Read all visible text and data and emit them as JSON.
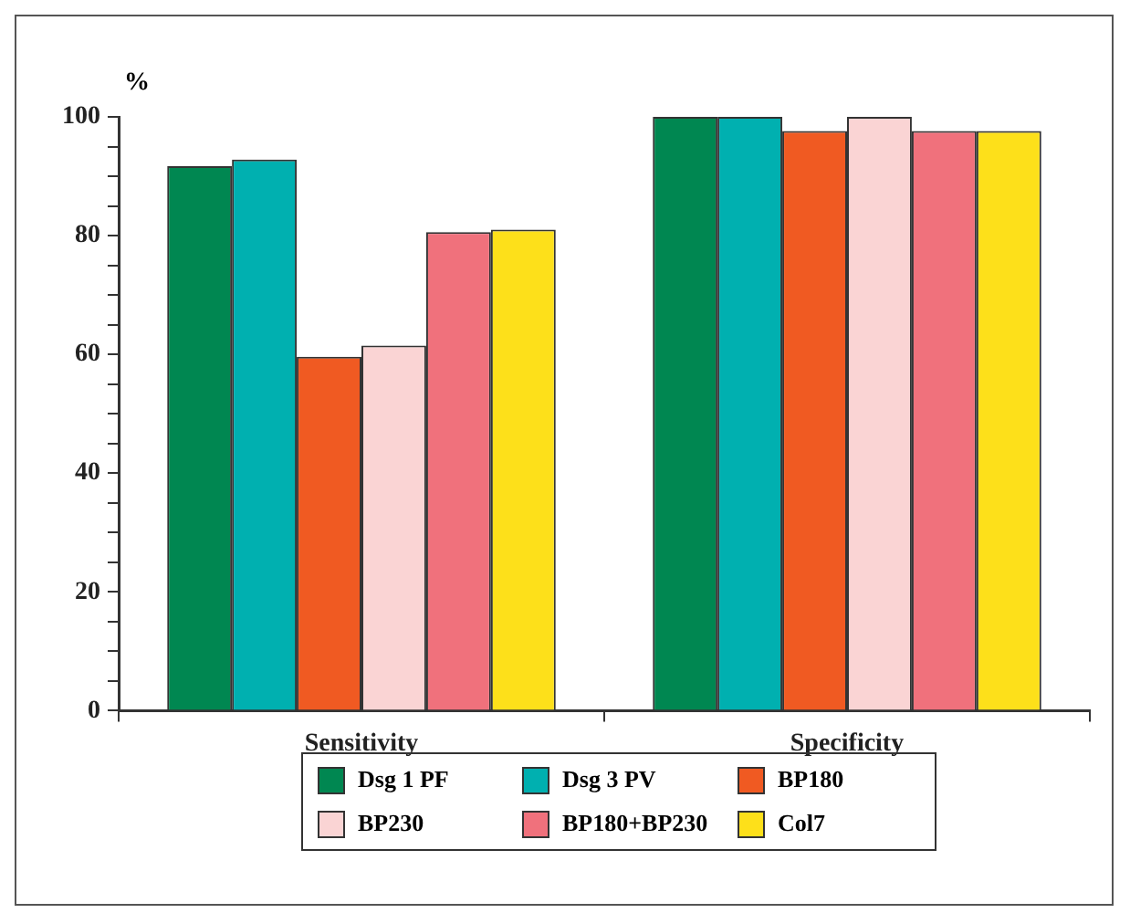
{
  "chart_data": {
    "type": "bar",
    "ylabel": "%",
    "categories": [
      "Sensitivity",
      "Specificity"
    ],
    "series": [
      {
        "name": "Dsg 1 PF",
        "color": "#008751",
        "values": [
          91.7,
          100
        ]
      },
      {
        "name": "Dsg 3 PV",
        "color": "#00b0b0",
        "values": [
          92.8,
          100
        ]
      },
      {
        "name": "BP180",
        "color": "#f05a22",
        "values": [
          59.6,
          97.6
        ]
      },
      {
        "name": "BP230",
        "color": "#fad4d4",
        "values": [
          61.5,
          100
        ]
      },
      {
        "name": "BP180+BP230",
        "color": "#f0717c",
        "values": [
          80.6,
          97.6
        ]
      },
      {
        "name": "Col7",
        "color": "#fde01a",
        "values": [
          81.0,
          97.6
        ]
      }
    ],
    "ylim": [
      0,
      100
    ],
    "yticks": [
      0,
      {
        "value": 5,
        "label": null
      },
      {
        "value": 10,
        "label": null
      },
      {
        "value": 15,
        "label": null
      },
      20,
      {
        "value": 25,
        "label": null
      },
      {
        "value": 30,
        "label": null
      },
      {
        "value": 35,
        "label": null
      },
      40,
      {
        "value": 45,
        "label": null
      },
      {
        "value": 50,
        "label": null
      },
      {
        "value": 55,
        "label": null
      },
      60,
      {
        "value": 65,
        "label": null
      },
      {
        "value": 70,
        "label": null
      },
      {
        "value": 75,
        "label": null
      },
      80,
      {
        "value": 85,
        "label": null
      },
      {
        "value": 90,
        "label": null
      },
      {
        "value": 95,
        "label": null
      },
      100
    ],
    "grid": false,
    "legend": "bottom"
  }
}
